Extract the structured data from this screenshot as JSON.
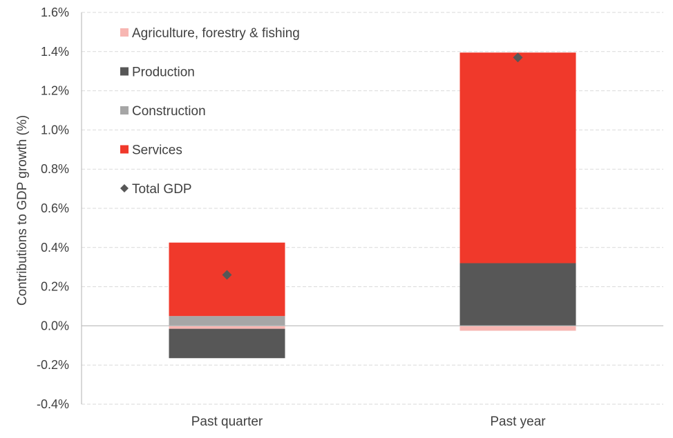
{
  "chart_data": {
    "type": "bar",
    "stacked": true,
    "title": "",
    "xlabel": "",
    "ylabel": "Contributions to GDP growth (%)",
    "categories": [
      "Past quarter",
      "Past year"
    ],
    "ylim": [
      -0.4,
      1.6
    ],
    "ytick_step": 0.2,
    "ytick_format": "percent_1dp",
    "grid": true,
    "legend_position": "top-left",
    "series": [
      {
        "name": "Agriculture, forestry & fishing",
        "values": [
          -0.015,
          -0.025
        ],
        "color": "#f7b6b2",
        "marker": "square"
      },
      {
        "name": "Production",
        "values": [
          -0.15,
          0.32
        ],
        "color": "#575757",
        "marker": "square"
      },
      {
        "name": "Construction",
        "values": [
          0.05,
          0.0
        ],
        "color": "#a6a6a6",
        "marker": "square"
      },
      {
        "name": "Services",
        "values": [
          0.375,
          1.075
        ],
        "color": "#f0392b",
        "marker": "square"
      },
      {
        "name": "Total GDP",
        "values": [
          0.26,
          1.37
        ],
        "color": "#575757",
        "marker": "diamond",
        "kind": "point"
      }
    ]
  }
}
